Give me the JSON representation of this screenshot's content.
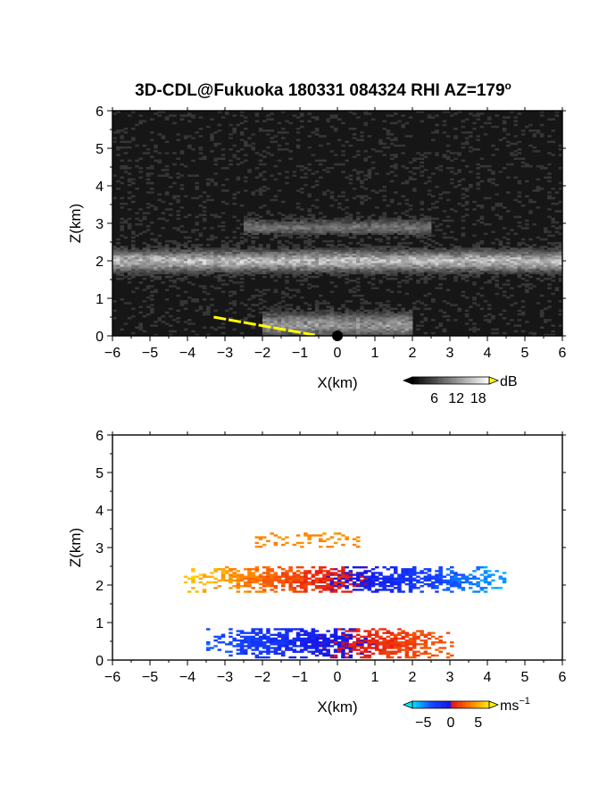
{
  "title": "3D-CDL@Fukuoka 180331 084324 RHI AZ=179",
  "title_superscript": "o",
  "chart_data": [
    {
      "type": "heatmap",
      "panel": "reflectivity",
      "xlabel": "X(km)",
      "ylabel": "Z(km)",
      "xlim": [
        -6,
        6
      ],
      "ylim": [
        0,
        6
      ],
      "xticks": [
        "-6",
        "-5",
        "-4",
        "-3",
        "-2",
        "-1",
        "0",
        "1",
        "2",
        "3",
        "4",
        "5",
        "6"
      ],
      "yticks": [
        "0",
        "1",
        "2",
        "3",
        "4",
        "5",
        "6"
      ],
      "colormap": "grayscale with yellow above range",
      "colorbar": {
        "unit": "dB",
        "ticks": [
          "6",
          "12",
          "18"
        ],
        "range": [
          0,
          21
        ]
      },
      "layers": [
        {
          "z_center": 2.0,
          "thickness": 0.35,
          "x_extent": [
            -6,
            6
          ],
          "intensity": 0.6
        },
        {
          "z_center": 2.9,
          "thickness": 0.25,
          "x_extent": [
            -2.5,
            2.5
          ],
          "intensity": 0.3
        },
        {
          "z_center": 0.3,
          "thickness": 0.4,
          "x_extent": [
            -2,
            2
          ],
          "intensity": 0.45
        }
      ],
      "ground_clutter_line": {
        "color": "#ffff00",
        "x": [
          -3.3,
          -0.6
        ],
        "z": [
          0.5,
          0.02
        ]
      }
    },
    {
      "type": "heatmap",
      "panel": "doppler velocity",
      "xlabel": "X(km)",
      "ylabel": "Z(km)",
      "xlim": [
        -6,
        6
      ],
      "ylim": [
        0,
        6
      ],
      "xticks": [
        "-6",
        "-5",
        "-4",
        "-3",
        "-2",
        "-1",
        "0",
        "1",
        "2",
        "3",
        "4",
        "5",
        "6"
      ],
      "yticks": [
        "0",
        "1",
        "2",
        "3",
        "4",
        "5",
        "6"
      ],
      "colormap": "cyan-blue-red-yellow",
      "colorbar": {
        "unit": "ms",
        "unit_exponent": "-1",
        "ticks": [
          "-5",
          "0",
          "5"
        ],
        "range": [
          -7,
          7
        ]
      },
      "layers": [
        {
          "name": "upper layer",
          "z_range": [
            1.8,
            2.5
          ],
          "x_range": [
            -4.1,
            4.6
          ],
          "velocity_at_left": 6,
          "velocity_at_right": -6
        },
        {
          "name": "lower layer",
          "z_range": [
            0.05,
            0.85
          ],
          "x_range": [
            -3.5,
            3.1
          ],
          "velocity_at_left": -4,
          "velocity_at_right": 3
        },
        {
          "name": "scattered",
          "z_range": [
            3.0,
            3.4
          ],
          "x_range": [
            -2.2,
            0.6
          ],
          "velocity": 4
        }
      ]
    }
  ]
}
